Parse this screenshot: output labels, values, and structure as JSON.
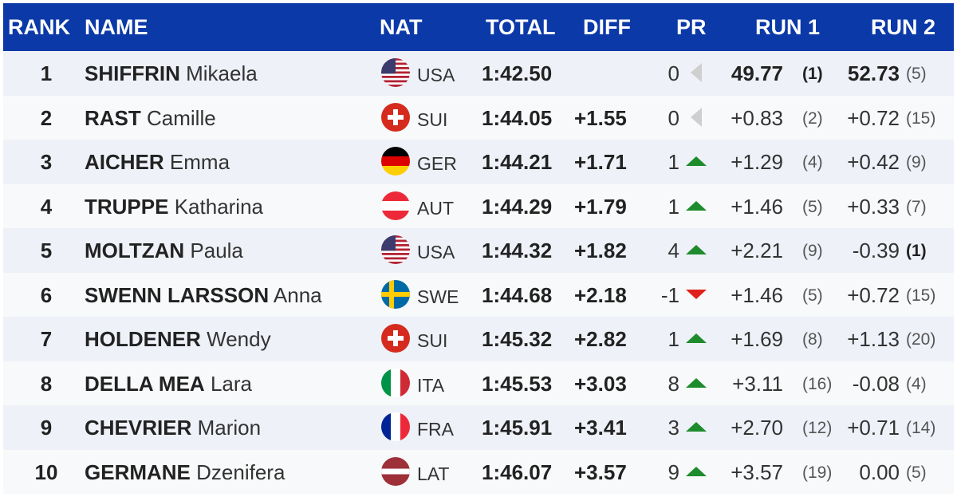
{
  "header": {
    "rank": "RANK",
    "name": "NAME",
    "nat": "NAT",
    "total": "TOTAL",
    "diff": "DIFF",
    "pr": "PR",
    "run1": "RUN 1",
    "run2": "RUN 2"
  },
  "colors": {
    "header_bg": "#0b39a8",
    "arrow_up": "#1e8c2c",
    "arrow_down": "#e0201a",
    "arrow_same": "#cfcfcf"
  },
  "rows": [
    {
      "rank": "1",
      "surname": "SHIFFRIN",
      "first": "Mikaela",
      "nat": "USA",
      "flag": "usa-flag-icon",
      "total": "1:42.50",
      "diff": "",
      "pr": "0",
      "trend": "same",
      "run1": "49.77",
      "run1_rank": "(1)",
      "run2": "52.73",
      "run2_rank": "(5)"
    },
    {
      "rank": "2",
      "surname": "RAST",
      "first": "Camille",
      "nat": "SUI",
      "flag": "switzerland-flag-icon",
      "total": "1:44.05",
      "diff": "+1.55",
      "pr": "0",
      "trend": "same",
      "run1": "+0.83",
      "run1_rank": "(2)",
      "run2": "+0.72",
      "run2_rank": "(15)"
    },
    {
      "rank": "3",
      "surname": "AICHER",
      "first": "Emma",
      "nat": "GER",
      "flag": "germany-flag-icon",
      "total": "1:44.21",
      "diff": "+1.71",
      "pr": "1",
      "trend": "up",
      "run1": "+1.29",
      "run1_rank": "(4)",
      "run2": "+0.42",
      "run2_rank": "(9)"
    },
    {
      "rank": "4",
      "surname": "TRUPPE",
      "first": "Katharina",
      "nat": "AUT",
      "flag": "austria-flag-icon",
      "total": "1:44.29",
      "diff": "+1.79",
      "pr": "1",
      "trend": "up",
      "run1": "+1.46",
      "run1_rank": "(5)",
      "run2": "+0.33",
      "run2_rank": "(7)"
    },
    {
      "rank": "5",
      "surname": "MOLTZAN",
      "first": "Paula",
      "nat": "USA",
      "flag": "usa-flag-icon",
      "total": "1:44.32",
      "diff": "+1.82",
      "pr": "4",
      "trend": "up",
      "run1": "+2.21",
      "run1_rank": "(9)",
      "run2": "-0.39",
      "run2_rank": "(1)"
    },
    {
      "rank": "6",
      "surname": "SWENN LARSSON",
      "first": "Anna",
      "nat": "SWE",
      "flag": "sweden-flag-icon",
      "total": "1:44.68",
      "diff": "+2.18",
      "pr": "-1",
      "trend": "down",
      "run1": "+1.46",
      "run1_rank": "(5)",
      "run2": "+0.72",
      "run2_rank": "(15)"
    },
    {
      "rank": "7",
      "surname": "HOLDENER",
      "first": "Wendy",
      "nat": "SUI",
      "flag": "switzerland-flag-icon",
      "total": "1:45.32",
      "diff": "+2.82",
      "pr": "1",
      "trend": "up",
      "run1": "+1.69",
      "run1_rank": "(8)",
      "run2": "+1.13",
      "run2_rank": "(20)"
    },
    {
      "rank": "8",
      "surname": "DELLA MEA",
      "first": "Lara",
      "nat": "ITA",
      "flag": "italy-flag-icon",
      "total": "1:45.53",
      "diff": "+3.03",
      "pr": "8",
      "trend": "up",
      "run1": "+3.11",
      "run1_rank": "(16)",
      "run2": "-0.08",
      "run2_rank": "(4)"
    },
    {
      "rank": "9",
      "surname": "CHEVRIER",
      "first": "Marion",
      "nat": "FRA",
      "flag": "france-flag-icon",
      "total": "1:45.91",
      "diff": "+3.41",
      "pr": "3",
      "trend": "up",
      "run1": "+2.70",
      "run1_rank": "(12)",
      "run2": "+0.71",
      "run2_rank": "(14)"
    },
    {
      "rank": "10",
      "surname": "GERMANE",
      "first": "Dzenifera",
      "nat": "LAT",
      "flag": "latvia-flag-icon",
      "total": "1:46.07",
      "diff": "+3.57",
      "pr": "9",
      "trend": "up",
      "run1": "+3.57",
      "run1_rank": "(19)",
      "run2": "0.00",
      "run2_rank": "(5)"
    }
  ]
}
